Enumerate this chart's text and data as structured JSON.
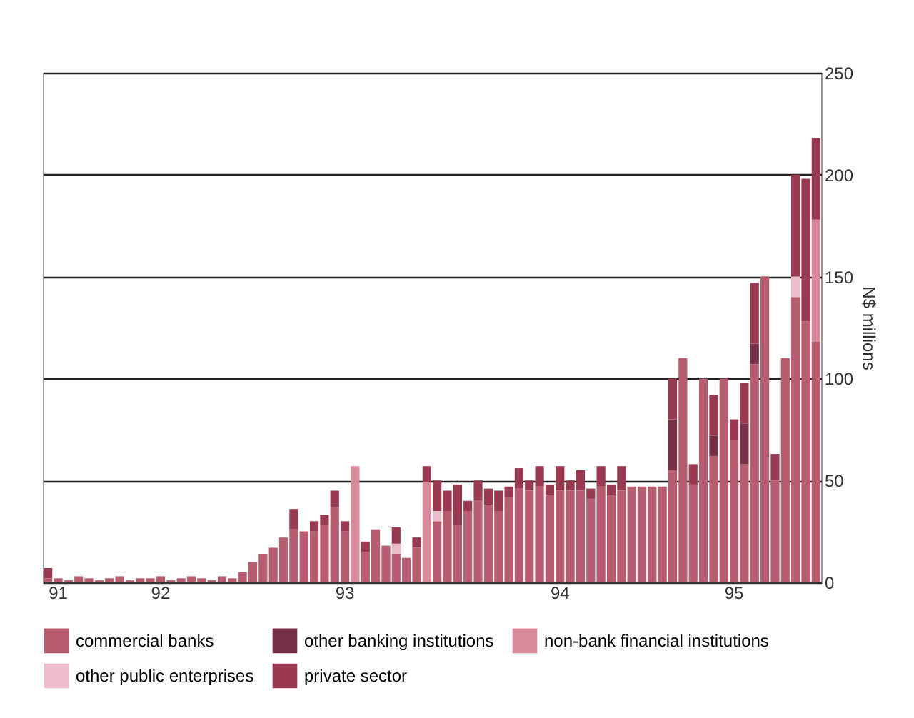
{
  "chart_data": {
    "type": "bar",
    "stacked": true,
    "ylabel": "N$ millions",
    "ylim": [
      0,
      250
    ],
    "yticks": [
      0,
      50,
      100,
      150,
      200,
      250
    ],
    "grid": "y",
    "legend": "bottom",
    "categories": [
      null,
      "91",
      null,
      null,
      null,
      null,
      null,
      null,
      null,
      null,
      null,
      "92",
      null,
      null,
      null,
      null,
      null,
      null,
      null,
      null,
      null,
      null,
      null,
      null,
      null,
      null,
      null,
      null,
      null,
      "93",
      null,
      null,
      null,
      null,
      null,
      null,
      null,
      null,
      null,
      null,
      null,
      null,
      null,
      null,
      null,
      null,
      null,
      null,
      null,
      null,
      "94",
      null,
      null,
      null,
      null,
      null,
      null,
      null,
      null,
      null,
      null,
      null,
      null,
      null,
      null,
      null,
      null,
      "95",
      null,
      null,
      null,
      null,
      null,
      null,
      null,
      null
    ],
    "series": [
      {
        "name": "commercial banks",
        "color": "#b85c70",
        "values": [
          2,
          2,
          1,
          3,
          2,
          1,
          2,
          3,
          1,
          2,
          2,
          3,
          1,
          2,
          3,
          2,
          1,
          3,
          2,
          5,
          10,
          14,
          17,
          22,
          26,
          25,
          25,
          28,
          37,
          25,
          0,
          15,
          26,
          18,
          14,
          12,
          17,
          0,
          30,
          35,
          28,
          35,
          40,
          38,
          35,
          42,
          46,
          45,
          47,
          43,
          45,
          45,
          45,
          41,
          47,
          43,
          45,
          47,
          47,
          47,
          47,
          55,
          110,
          48,
          100,
          62,
          100,
          70,
          58,
          107,
          150,
          50,
          110,
          140,
          128,
          118
        ]
      },
      {
        "name": "other banking institutions",
        "color": "#7a3046",
        "values": [
          0,
          0,
          0,
          0,
          0,
          0,
          0,
          0,
          0,
          0,
          0,
          0,
          0,
          0,
          0,
          0,
          0,
          0,
          0,
          0,
          0,
          0,
          0,
          0,
          0,
          0,
          0,
          0,
          0,
          0,
          0,
          0,
          0,
          0,
          0,
          0,
          0,
          0,
          0,
          0,
          0,
          0,
          0,
          0,
          0,
          0,
          0,
          0,
          0,
          0,
          0,
          0,
          0,
          0,
          0,
          0,
          0,
          0,
          0,
          0,
          0,
          25,
          0,
          0,
          0,
          10,
          0,
          0,
          20,
          10,
          0,
          0,
          0,
          0,
          0,
          0
        ]
      },
      {
        "name": "non-bank financial institutions",
        "color": "#d88a9c",
        "values": [
          0,
          0,
          0,
          0,
          0,
          0,
          0,
          0,
          0,
          0,
          0,
          0,
          0,
          0,
          0,
          0,
          0,
          0,
          0,
          0,
          0,
          0,
          0,
          0,
          0,
          0,
          0,
          0,
          0,
          0,
          57,
          0,
          0,
          0,
          0,
          0,
          0,
          49,
          0,
          0,
          0,
          0,
          0,
          0,
          0,
          0,
          0,
          0,
          0,
          0,
          0,
          0,
          0,
          0,
          0,
          0,
          0,
          0,
          0,
          0,
          0,
          0,
          0,
          0,
          0,
          0,
          0,
          0,
          0,
          0,
          0,
          0,
          0,
          0,
          0,
          60
        ]
      },
      {
        "name": "other public enterprises",
        "color": "#ecbccb",
        "values": [
          0,
          0,
          0,
          0,
          0,
          0,
          0,
          0,
          0,
          0,
          0,
          0,
          0,
          0,
          0,
          0,
          0,
          0,
          0,
          0,
          0,
          0,
          0,
          0,
          0,
          0,
          0,
          0,
          0,
          0,
          0,
          0,
          0,
          0,
          5,
          0,
          0,
          0,
          5,
          0,
          0,
          0,
          0,
          0,
          0,
          0,
          0,
          0,
          0,
          0,
          0,
          0,
          0,
          0,
          0,
          0,
          0,
          0,
          0,
          0,
          0,
          0,
          0,
          0,
          0,
          0,
          0,
          0,
          0,
          0,
          0,
          0,
          0,
          10,
          0,
          0
        ]
      },
      {
        "name": "private sector",
        "color": "#9a3a52",
        "values": [
          5,
          0,
          0,
          0,
          0,
          0,
          0,
          0,
          0,
          0,
          0,
          0,
          0,
          0,
          0,
          0,
          0,
          0,
          0,
          0,
          0,
          0,
          0,
          0,
          10,
          0,
          5,
          5,
          8,
          5,
          0,
          5,
          0,
          0,
          8,
          0,
          5,
          8,
          15,
          10,
          20,
          5,
          10,
          8,
          10,
          5,
          10,
          5,
          10,
          5,
          12,
          5,
          10,
          5,
          10,
          5,
          12,
          0,
          0,
          0,
          0,
          20,
          0,
          10,
          0,
          20,
          0,
          10,
          20,
          30,
          0,
          13,
          0,
          50,
          70,
          40
        ]
      }
    ]
  }
}
